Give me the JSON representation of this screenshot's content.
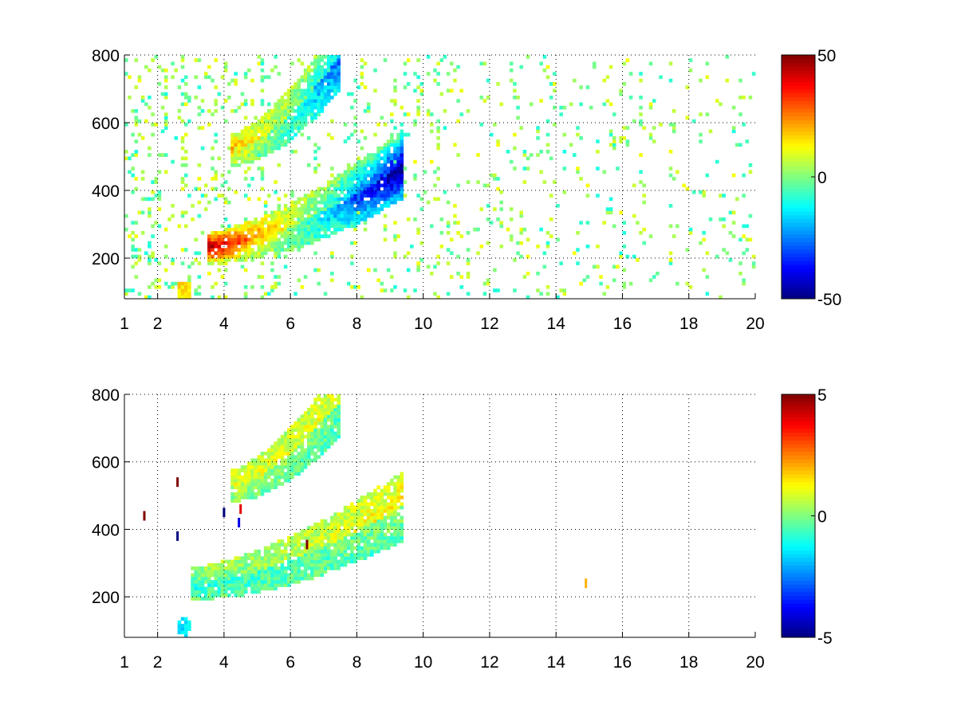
{
  "figure": {
    "background": "#ffffff"
  },
  "chart_data": [
    {
      "type": "heatmap",
      "title": "",
      "xlabel": "",
      "ylabel": "",
      "xlim": [
        1,
        20
      ],
      "ylim": [
        80,
        800
      ],
      "xticks": [
        1,
        2,
        4,
        6,
        8,
        10,
        12,
        14,
        16,
        18,
        20
      ],
      "xtick_labels": [
        "1",
        "2",
        "4",
        "6",
        "8",
        "10",
        "12",
        "14",
        "16",
        "18",
        "20"
      ],
      "yticks": [
        200,
        400,
        600,
        800
      ],
      "ytick_labels": [
        "200",
        "400",
        "600",
        "800"
      ],
      "grid": true,
      "colormap": "jet",
      "clim": [
        -50,
        50
      ],
      "colorbar_ticks": [
        -50,
        0,
        50
      ],
      "colorbar_tick_labels": [
        "-50",
        "0",
        "50"
      ],
      "features": [
        {
          "kind": "ridge",
          "x_start": 3.5,
          "x_end": 9.4,
          "y_start": 230,
          "y_end": 480,
          "value_start": 40,
          "value_end": -45,
          "description": "main curved band, strong positive at low x turning strongly negative near x=7–9"
        },
        {
          "kind": "ridge",
          "x_start": 4.2,
          "x_end": 7.5,
          "y_start": 520,
          "y_end": 800,
          "value_start": 15,
          "value_end": -20,
          "description": "upper branch"
        },
        {
          "kind": "blob",
          "x": 2.8,
          "y": 105,
          "value": 15
        }
      ],
      "noise": {
        "x_range": [
          1,
          20
        ],
        "typical_value_range": [
          -10,
          12
        ],
        "density": "sparse columns"
      }
    },
    {
      "type": "heatmap",
      "title": "",
      "xlabel": "",
      "ylabel": "",
      "xlim": [
        1,
        20
      ],
      "ylim": [
        80,
        800
      ],
      "xticks": [
        1,
        2,
        4,
        6,
        8,
        10,
        12,
        14,
        16,
        18,
        20
      ],
      "xtick_labels": [
        "1",
        "2",
        "4",
        "6",
        "8",
        "10",
        "12",
        "14",
        "16",
        "18",
        "20"
      ],
      "yticks": [
        200,
        400,
        600,
        800
      ],
      "ytick_labels": [
        "200",
        "400",
        "600",
        "800"
      ],
      "grid": true,
      "colormap": "jet",
      "clim": [
        -5,
        5
      ],
      "colorbar_ticks": [
        -5,
        0,
        5
      ],
      "colorbar_tick_labels": [
        "-5",
        "0",
        "5"
      ],
      "features": [
        {
          "kind": "ridge",
          "x_start": 3.0,
          "x_end": 9.4,
          "y_start": 240,
          "y_end": 470,
          "value_start": -1,
          "value_end": 1,
          "description": "main curved band, near zero"
        },
        {
          "kind": "ridge",
          "x_start": 4.2,
          "x_end": 7.5,
          "y_start": 530,
          "y_end": 780,
          "value_start": 0.5,
          "value_end": 0.5,
          "description": "upper branch"
        },
        {
          "kind": "blob",
          "x": 2.8,
          "y": 110,
          "value": -1.5
        }
      ],
      "outliers": [
        {
          "x": 2.6,
          "y": 540,
          "value": 5
        },
        {
          "x": 2.6,
          "y": 380,
          "value": -5
        },
        {
          "x": 4.0,
          "y": 450,
          "value": -5
        },
        {
          "x": 4.5,
          "y": 460,
          "value": 4
        },
        {
          "x": 4.45,
          "y": 420,
          "value": -4
        },
        {
          "x": 6.5,
          "y": 355,
          "value": 5
        },
        {
          "x": 1.6,
          "y": 440,
          "value": 5
        },
        {
          "x": 14.9,
          "y": 240,
          "value": 2
        }
      ]
    }
  ]
}
